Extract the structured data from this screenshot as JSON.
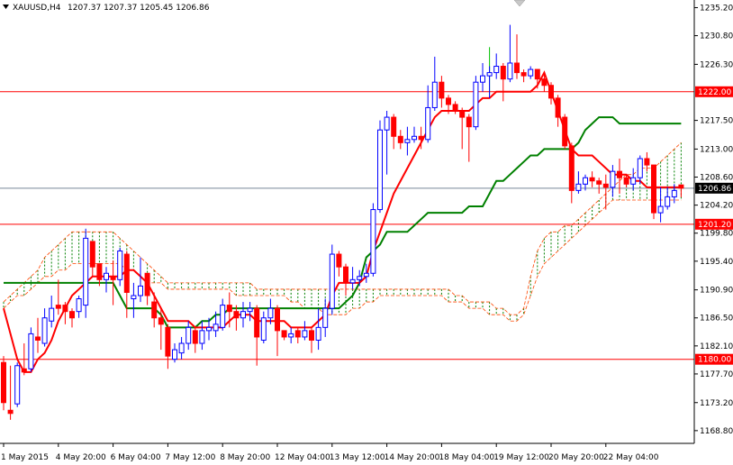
{
  "chart_data": {
    "type": "candlestick",
    "header": {
      "symbol_timeframe": "XAUUSD,H4",
      "ohlc": "1207.37 1207.37 1205.45 1206.86"
    },
    "y_ticks": [
      "1235.20",
      "1230.80",
      "1226.30",
      "1217.50",
      "1213.00",
      "1208.60",
      "1204.20",
      "1199.80",
      "1195.40",
      "1190.90",
      "1186.50",
      "1182.10",
      "1177.70",
      "1173.20",
      "1168.80"
    ],
    "y_range": [
      1166.8,
      1236.4
    ],
    "x_ticks": [
      "1 May 2015",
      "4 May 20:00",
      "6 May 04:00",
      "7 May 12:00",
      "8 May 20:00",
      "12 May 04:00",
      "13 May 12:00",
      "14 May 20:00",
      "18 May 04:00",
      "19 May 12:00",
      "20 May 20:00",
      "22 May 04:00"
    ],
    "x_tick_index": [
      0,
      8,
      16,
      24,
      32,
      40,
      48,
      56,
      64,
      72,
      80,
      88
    ],
    "levels": [
      {
        "label": "1222.00",
        "value": 1222.0
      },
      {
        "label": "1201.20",
        "value": 1201.2
      },
      {
        "label": "1180.00",
        "value": 1180.0
      }
    ],
    "current_price": {
      "label": "1206.86",
      "value": 1206.86
    },
    "candles": [
      [
        1179.5,
        1173.2,
        1180.5,
        1172.0
      ],
      [
        1172.0,
        1171.5,
        1179.0,
        1170.5
      ],
      [
        1173.0,
        1179.0,
        1179.5,
        1172.5
      ],
      [
        1178.5,
        1178.0,
        1182.5,
        1177.5
      ],
      [
        1178.5,
        1184.0,
        1185.0,
        1178.0
      ],
      [
        1183.5,
        1183.0,
        1186.5,
        1181.0
      ],
      [
        1182.5,
        1186.5,
        1188.0,
        1182.0
      ],
      [
        1186.0,
        1188.0,
        1190.0,
        1185.0
      ],
      [
        1188.5,
        1188.0,
        1192.5,
        1187.0
      ],
      [
        1188.5,
        1187.5,
        1189.0,
        1185.5
      ],
      [
        1187.5,
        1186.5,
        1188.0,
        1185.0
      ],
      [
        1187.5,
        1189.5,
        1190.0,
        1186.5
      ],
      [
        1188.5,
        1199.0,
        1200.5,
        1186.5
      ],
      [
        1198.5,
        1194.5,
        1198.5,
        1193.0
      ],
      [
        1195.0,
        1192.5,
        1195.0,
        1191.5
      ],
      [
        1192.5,
        1193.5,
        1194.5,
        1190.5
      ],
      [
        1193.0,
        1192.5,
        1195.5,
        1188.5
      ],
      [
        1192.5,
        1197.0,
        1197.5,
        1191.5
      ],
      [
        1196.5,
        1190.5,
        1197.0,
        1186.5
      ],
      [
        1189.5,
        1190.0,
        1192.0,
        1186.5
      ],
      [
        1190.0,
        1191.5,
        1196.0,
        1189.0
      ],
      [
        1193.5,
        1190.0,
        1193.5,
        1188.5
      ],
      [
        1189.0,
        1186.5,
        1190.5,
        1185.0
      ],
      [
        1186.5,
        1185.5,
        1188.0,
        1181.5
      ],
      [
        1185.0,
        1180.5,
        1185.5,
        1178.5
      ],
      [
        1180.0,
        1181.5,
        1182.5,
        1179.5
      ],
      [
        1181.0,
        1182.5,
        1183.5,
        1180.0
      ],
      [
        1182.5,
        1185.0,
        1186.0,
        1181.5
      ],
      [
        1184.5,
        1182.5,
        1185.0,
        1181.0
      ],
      [
        1182.5,
        1184.5,
        1186.0,
        1181.5
      ],
      [
        1184.5,
        1185.0,
        1186.5,
        1183.0
      ],
      [
        1184.5,
        1185.5,
        1187.5,
        1183.5
      ],
      [
        1185.0,
        1188.5,
        1189.5,
        1184.5
      ],
      [
        1188.5,
        1187.5,
        1190.5,
        1185.0
      ],
      [
        1187.5,
        1186.5,
        1188.5,
        1184.5
      ],
      [
        1186.5,
        1187.5,
        1189.0,
        1185.0
      ],
      [
        1187.5,
        1188.0,
        1189.0,
        1186.0
      ],
      [
        1188.0,
        1183.5,
        1188.5,
        1179.0
      ],
      [
        1183.0,
        1186.5,
        1187.5,
        1182.5
      ],
      [
        1186.5,
        1188.0,
        1189.5,
        1185.5
      ],
      [
        1188.0,
        1184.5,
        1188.5,
        1180.5
      ],
      [
        1184.5,
        1183.5,
        1184.5,
        1183.0
      ],
      [
        1183.5,
        1184.0,
        1185.0,
        1182.5
      ],
      [
        1184.5,
        1183.5,
        1185.0,
        1182.5
      ],
      [
        1183.5,
        1184.5,
        1186.0,
        1183.0
      ],
      [
        1184.5,
        1183.0,
        1185.0,
        1181.0
      ],
      [
        1183.0,
        1185.0,
        1188.0,
        1181.5
      ],
      [
        1185.0,
        1188.0,
        1189.5,
        1183.5
      ],
      [
        1188.0,
        1196.5,
        1198.0,
        1187.0
      ],
      [
        1196.5,
        1194.5,
        1197.0,
        1193.0
      ],
      [
        1194.5,
        1192.0,
        1195.0,
        1190.0
      ],
      [
        1192.0,
        1192.5,
        1194.5,
        1191.0
      ],
      [
        1192.5,
        1193.0,
        1194.0,
        1191.5
      ],
      [
        1193.0,
        1193.5,
        1195.0,
        1192.0
      ],
      [
        1193.5,
        1203.5,
        1204.5,
        1193.0
      ],
      [
        1203.5,
        1216.0,
        1217.5,
        1203.0
      ],
      [
        1216.0,
        1218.0,
        1219.0,
        1209.0
      ],
      [
        1218.0,
        1215.0,
        1218.5,
        1213.0
      ],
      [
        1215.0,
        1214.0,
        1216.0,
        1213.0
      ],
      [
        1214.0,
        1214.5,
        1216.5,
        1212.0
      ],
      [
        1214.5,
        1215.0,
        1216.5,
        1214.0
      ],
      [
        1215.0,
        1214.5,
        1216.5,
        1213.0
      ],
      [
        1214.5,
        1219.5,
        1223.0,
        1214.0
      ],
      [
        1219.5,
        1223.5,
        1227.5,
        1219.0
      ],
      [
        1223.5,
        1221.0,
        1224.5,
        1219.5
      ],
      [
        1221.0,
        1220.0,
        1221.5,
        1218.5
      ],
      [
        1220.0,
        1219.0,
        1220.5,
        1218.5
      ],
      [
        1219.0,
        1218.0,
        1219.5,
        1213.0
      ],
      [
        1218.0,
        1216.5,
        1218.5,
        1211.0
      ],
      [
        1216.5,
        1223.5,
        1224.5,
        1216.0
      ],
      [
        1223.5,
        1224.5,
        1226.5,
        1222.0
      ],
      [
        1224.5,
        1225.0,
        1226.0,
        1221.0
      ],
      [
        1225.0,
        1226.0,
        1228.0,
        1224.0
      ],
      [
        1226.0,
        1224.0,
        1226.5,
        1220.5
      ],
      [
        1224.0,
        1226.5,
        1232.5,
        1223.5
      ],
      [
        1226.5,
        1225.0,
        1231.0,
        1224.0
      ],
      [
        1225.0,
        1224.5,
        1225.5,
        1223.5
      ],
      [
        1224.5,
        1225.5,
        1226.0,
        1224.0
      ],
      [
        1225.5,
        1224.0,
        1225.5,
        1222.5
      ],
      [
        1224.0,
        1223.0,
        1225.0,
        1222.0
      ],
      [
        1223.0,
        1221.0,
        1223.5,
        1220.0
      ],
      [
        1221.0,
        1218.0,
        1221.5,
        1216.5
      ],
      [
        1218.0,
        1213.5,
        1218.5,
        1213.0
      ],
      [
        1213.5,
        1206.5,
        1214.0,
        1204.5
      ],
      [
        1206.5,
        1207.5,
        1209.5,
        1206.0
      ],
      [
        1207.5,
        1208.5,
        1209.0,
        1206.5
      ],
      [
        1208.5,
        1208.0,
        1209.5,
        1207.0
      ],
      [
        1208.0,
        1207.5,
        1208.5,
        1206.0
      ],
      [
        1207.5,
        1207.0,
        1209.0,
        1203.5
      ],
      [
        1207.0,
        1209.5,
        1210.5,
        1205.5
      ],
      [
        1209.5,
        1208.5,
        1211.5,
        1206.0
      ],
      [
        1208.5,
        1207.5,
        1209.0,
        1207.0
      ],
      [
        1207.5,
        1208.5,
        1210.0,
        1206.5
      ],
      [
        1208.5,
        1211.5,
        1212.0,
        1207.5
      ],
      [
        1211.5,
        1210.5,
        1212.5,
        1209.5
      ],
      [
        1210.5,
        1203.0,
        1210.5,
        1202.0
      ],
      [
        1203.0,
        1204.0,
        1207.0,
        1201.5
      ],
      [
        1204.0,
        1205.5,
        1207.0,
        1203.5
      ],
      [
        1205.5,
        1206.5,
        1207.5,
        1204.5
      ],
      [
        1207.37,
        1206.86,
        1207.37,
        1205.45
      ]
    ],
    "tenkan_sen": [
      1188,
      1184,
      1180,
      1178,
      1178,
      1180,
      1181,
      1183,
      1186,
      1188,
      1190,
      1191,
      1192,
      1193,
      1193,
      1193,
      1193,
      1193,
      1194,
      1194,
      1193,
      1192,
      1190,
      1188,
      1186,
      1186,
      1186,
      1186,
      1185,
      1185,
      1185,
      1185,
      1185,
      1186,
      1187,
      1187,
      1187,
      1186,
      1186,
      1186,
      1186,
      1186,
      1185,
      1185,
      1185,
      1185,
      1186,
      1187,
      1190,
      1192,
      1192,
      1192,
      1192,
      1193,
      1197,
      1200,
      1203,
      1206,
      1208,
      1210,
      1212,
      1214,
      1216,
      1218,
      1219,
      1219,
      1219,
      1219,
      1219,
      1220,
      1221,
      1221,
      1222,
      1222,
      1222,
      1222,
      1222,
      1222,
      1223,
      1225,
      1222,
      1219,
      1216,
      1213,
      1212,
      1212,
      1212,
      1211,
      1210,
      1209,
      1209,
      1209,
      1208,
      1208,
      1207,
      1207,
      1207,
      1207,
      1207,
      1207
    ],
    "kijun_sen": [
      1192,
      1192,
      1192,
      1192,
      1192,
      1192,
      1192,
      1192,
      1192,
      1192,
      1192,
      1192,
      1192,
      1192,
      1192,
      1192,
      1192,
      1190,
      1188,
      1188,
      1188,
      1188,
      1188,
      1187,
      1185,
      1185,
      1185,
      1185,
      1185,
      1186,
      1186,
      1187,
      1187,
      1188,
      1188,
      1188,
      1188,
      1188,
      1188,
      1188,
      1188,
      1188,
      1188,
      1188,
      1188,
      1188,
      1188,
      1188,
      1188,
      1188,
      1189,
      1190,
      1192,
      1196,
      1197,
      1198,
      1200,
      1200,
      1200,
      1200,
      1201,
      1202,
      1203,
      1203,
      1203,
      1203,
      1203,
      1203,
      1204,
      1204,
      1204,
      1206,
      1208,
      1208,
      1209,
      1210,
      1211,
      1212,
      1212,
      1213,
      1213,
      1213,
      1213,
      1213,
      1214,
      1216,
      1217,
      1218,
      1218,
      1218,
      1217,
      1217,
      1217,
      1217,
      1217,
      1217,
      1217,
      1217,
      1217,
      1217
    ],
    "senkou_a": [
      1189,
      1190,
      1191,
      1192,
      1193,
      1194,
      1196,
      1197,
      1198,
      1199,
      1200,
      1200,
      1200,
      1200,
      1200,
      1200,
      1200,
      1199,
      1198,
      1197,
      1196,
      1195,
      1194,
      1193,
      1192,
      1192,
      1192,
      1192,
      1192,
      1192,
      1192,
      1192,
      1192,
      1192,
      1192,
      1192,
      1192,
      1191,
      1191,
      1191,
      1191,
      1191,
      1191,
      1191,
      1191,
      1191,
      1191,
      1191,
      1191,
      1191,
      1191,
      1191,
      1191,
      1191,
      1191,
      1191,
      1191,
      1191,
      1191,
      1191,
      1191,
      1191,
      1191,
      1191,
      1191,
      1191,
      1190,
      1190,
      1189,
      1189,
      1189,
      1189,
      1188,
      1188,
      1187,
      1187,
      1188,
      1193,
      1197,
      1199,
      1200,
      1200,
      1201,
      1201,
      1202,
      1203,
      1204,
      1205,
      1206,
      1207,
      1208,
      1209,
      1209,
      1210,
      1210,
      1210,
      1211,
      1212,
      1213,
      1214
    ],
    "senkou_b": [
      1188,
      1189,
      1190,
      1190,
      1191,
      1192,
      1193,
      1193,
      1194,
      1194,
      1195,
      1195,
      1195,
      1195,
      1195,
      1195,
      1195,
      1195,
      1194,
      1194,
      1193,
      1192,
      1192,
      1192,
      1191,
      1191,
      1191,
      1191,
      1191,
      1191,
      1191,
      1191,
      1191,
      1191,
      1190,
      1190,
      1190,
      1190,
      1190,
      1190,
      1190,
      1190,
      1189,
      1189,
      1188,
      1188,
      1188,
      1187,
      1187,
      1187,
      1187,
      1188,
      1188,
      1189,
      1189,
      1190,
      1190,
      1190,
      1190,
      1190,
      1190,
      1190,
      1190,
      1190,
      1190,
      1189,
      1189,
      1189,
      1188,
      1188,
      1188,
      1187,
      1187,
      1187,
      1186,
      1186,
      1187,
      1190,
      1193,
      1195,
      1196,
      1197,
      1198,
      1199,
      1200,
      1201,
      1202,
      1203,
      1204,
      1205,
      1205,
      1205,
      1205,
      1205,
      1205,
      1205,
      1205,
      1205,
      1205,
      1205
    ],
    "cloud_offset": 26,
    "colors": {
      "bull_candle": "#0000ff",
      "bear_candle": "#ff0000",
      "bear_body": "#ff0000",
      "tenkan": "#ff0000",
      "kijun": "#008000",
      "chikou": "#00c000",
      "cloud_bull": "#008000",
      "cloud_bear": "#ff4500",
      "level_line": "#ff0000",
      "current_line": "#778899",
      "price_tag": "#000000"
    }
  }
}
